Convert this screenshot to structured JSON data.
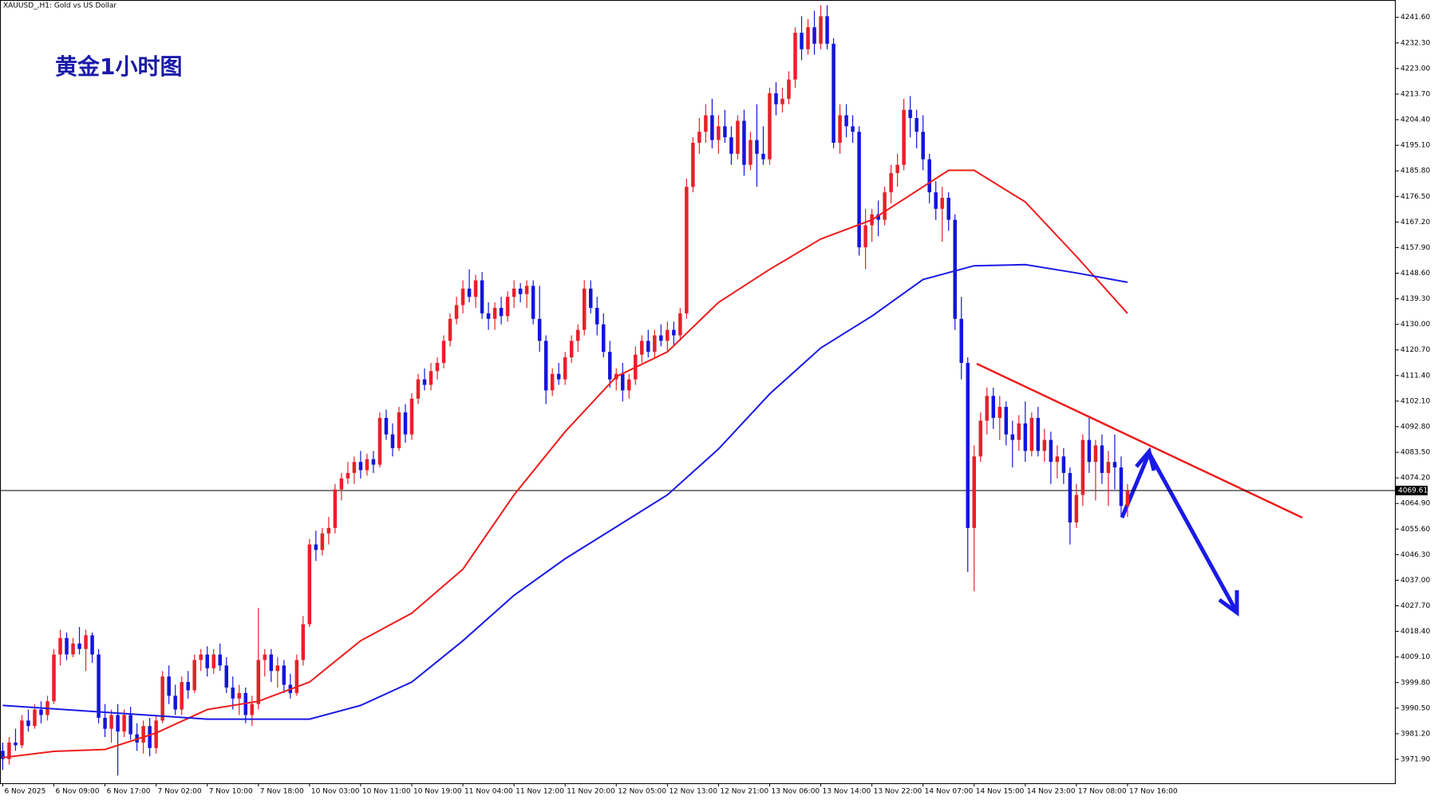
{
  "chart_data": {
    "type": "candlestick",
    "title": "XAUUSD_,H1:  Gold vs US Dollar",
    "annotation": "黄金1小时图",
    "up_color": "#e8202a",
    "down_color": "#1414dc",
    "current_price": 4069.61,
    "ylim": [
      3963.2,
      4247.9
    ],
    "yticks": [
      {
        "value": 4241.6,
        "label": "4241.60"
      },
      {
        "value": 4232.3,
        "label": "4232.30"
      },
      {
        "value": 4223,
        "label": "4223.00"
      },
      {
        "value": 4213.7,
        "label": "4213.70"
      },
      {
        "value": 4204.4,
        "label": "4204.40"
      },
      {
        "value": 4195.1,
        "label": "4195.10"
      },
      {
        "value": 4185.8,
        "label": "4185.80"
      },
      {
        "value": 4176.5,
        "label": "4176.50"
      },
      {
        "value": 4167.2,
        "label": "4167.20"
      },
      {
        "value": 4157.9,
        "label": "4157.90"
      },
      {
        "value": 4148.6,
        "label": "4148.60"
      },
      {
        "value": 4139.3,
        "label": "4139.30"
      },
      {
        "value": 4130,
        "label": "4130.00"
      },
      {
        "value": 4120.7,
        "label": "4120.70"
      },
      {
        "value": 4111.4,
        "label": "4111.40"
      },
      {
        "value": 4102.1,
        "label": "4102.10"
      },
      {
        "value": 4092.8,
        "label": "4092.80"
      },
      {
        "value": 4083.5,
        "label": "4083.50"
      },
      {
        "value": 4074.2,
        "label": "4074.20"
      },
      {
        "value": 4064.9,
        "label": "4064.90"
      },
      {
        "value": 4055.6,
        "label": "4055.60"
      },
      {
        "value": 4046.3,
        "label": "4046.30"
      },
      {
        "value": 4037,
        "label": "4037.00"
      },
      {
        "value": 4027.7,
        "label": "4027.70"
      },
      {
        "value": 4018.4,
        "label": "4018.40"
      },
      {
        "value": 4009.1,
        "label": "4009.10"
      },
      {
        "value": 3999.8,
        "label": "3999.80"
      },
      {
        "value": 3990.5,
        "label": "3990.50"
      },
      {
        "value": 3981.2,
        "label": "3981.20"
      },
      {
        "value": 3971.9,
        "label": "3971.90"
      }
    ],
    "xticks": [
      {
        "value": 0,
        "label": "6 Nov 2025"
      },
      {
        "value": 8,
        "label": "6 Nov 09:00"
      },
      {
        "value": 16,
        "label": "6 Nov 17:00"
      },
      {
        "value": 24,
        "label": "7 Nov 02:00"
      },
      {
        "value": 32,
        "label": "7 Nov 10:00"
      },
      {
        "value": 40,
        "label": "7 Nov 18:00"
      },
      {
        "value": 48,
        "label": "10 Nov 03:00"
      },
      {
        "value": 56,
        "label": "10 Nov 11:00"
      },
      {
        "value": 64,
        "label": "10 Nov 19:00"
      },
      {
        "value": 72,
        "label": "11 Nov 04:00"
      },
      {
        "value": 80,
        "label": "11 Nov 12:00"
      },
      {
        "value": 88,
        "label": "11 Nov 20:00"
      },
      {
        "value": 96,
        "label": "12 Nov 05:00"
      },
      {
        "value": 104,
        "label": "12 Nov 13:00"
      },
      {
        "value": 112,
        "label": "12 Nov 21:00"
      },
      {
        "value": 120,
        "label": "13 Nov 06:00"
      },
      {
        "value": 128,
        "label": "13 Nov 14:00"
      },
      {
        "value": 136,
        "label": "13 Nov 22:00"
      },
      {
        "value": 144,
        "label": "14 Nov 07:00"
      },
      {
        "value": 152,
        "label": "14 Nov 15:00"
      },
      {
        "value": 160,
        "label": "14 Nov 23:00"
      },
      {
        "value": 168,
        "label": "17 Nov 08:00"
      },
      {
        "value": 176,
        "label": "17 Nov 16:00"
      }
    ],
    "candles": [
      [
        3975,
        3978,
        3968,
        3972
      ],
      [
        3972,
        3980,
        3970,
        3978
      ],
      [
        3978,
        3983,
        3975,
        3977
      ],
      [
        3977,
        3988,
        3976,
        3986
      ],
      [
        3986,
        3990,
        3982,
        3984
      ],
      [
        3984,
        3992,
        3983,
        3990
      ],
      [
        3990,
        3993,
        3985,
        3988
      ],
      [
        3988,
        3995,
        3986,
        3993
      ],
      [
        3993,
        4012,
        3992,
        4010
      ],
      [
        4010,
        4019,
        4006,
        4016
      ],
      [
        4016,
        4018,
        4008,
        4010
      ],
      [
        4010,
        4016,
        4009,
        4014
      ],
      [
        4014,
        4020,
        4010,
        4012
      ],
      [
        4012,
        4019,
        4004,
        4017
      ],
      [
        4017,
        4018,
        4007,
        4010
      ],
      [
        4010,
        4012,
        3985,
        3987
      ],
      [
        3987,
        3992,
        3980,
        3983
      ],
      [
        3983,
        3990,
        3978,
        3988
      ],
      [
        3988,
        3992,
        3966,
        3982
      ],
      [
        3982,
        3990,
        3980,
        3988
      ],
      [
        3988,
        3991,
        3979,
        3981
      ],
      [
        3981,
        3985,
        3975,
        3978
      ],
      [
        3978,
        3986,
        3974,
        3984
      ],
      [
        3984,
        3987,
        3973,
        3976
      ],
      [
        3976,
        3988,
        3974,
        3986
      ],
      [
        3986,
        4004,
        3985,
        4002
      ],
      [
        4002,
        4006,
        3992,
        3995
      ],
      [
        3995,
        3999,
        3988,
        3990
      ],
      [
        3990,
        4002,
        3988,
        4000
      ],
      [
        4000,
        4004,
        3994,
        3997
      ],
      [
        3997,
        4010,
        3996,
        4008
      ],
      [
        4008,
        4012,
        4004,
        4010
      ],
      [
        4010,
        4013,
        4002,
        4005
      ],
      [
        4005,
        4012,
        4003,
        4010
      ],
      [
        4010,
        4014,
        4004,
        4006
      ],
      [
        4006,
        4009,
        3996,
        3998
      ],
      [
        3998,
        4002,
        3990,
        3994
      ],
      [
        3994,
        3999,
        3988,
        3996
      ],
      [
        3996,
        3998,
        3985,
        3988
      ],
      [
        3988,
        3995,
        3984,
        3992
      ],
      [
        3992,
        4027,
        3990,
        4008
      ],
      [
        4008,
        4012,
        4002,
        4010
      ],
      [
        4010,
        4012,
        4000,
        4004
      ],
      [
        4004,
        4009,
        3998,
        4006
      ],
      [
        4006,
        4008,
        3996,
        3999
      ],
      [
        3999,
        4003,
        3994,
        3996
      ],
      [
        3996,
        4010,
        3995,
        4008
      ],
      [
        4008,
        4024,
        4006,
        4021
      ],
      [
        4021,
        4052,
        4020,
        4050
      ],
      [
        4050,
        4055,
        4044,
        4048
      ],
      [
        4048,
        4056,
        4046,
        4054
      ],
      [
        4054,
        4060,
        4050,
        4056
      ],
      [
        4056,
        4072,
        4054,
        4070
      ],
      [
        4070,
        4076,
        4066,
        4074
      ],
      [
        4074,
        4080,
        4072,
        4076
      ],
      [
        4076,
        4082,
        4072,
        4080
      ],
      [
        4080,
        4084,
        4074,
        4077
      ],
      [
        4077,
        4083,
        4075,
        4081
      ],
      [
        4081,
        4084,
        4076,
        4079
      ],
      [
        4079,
        4098,
        4078,
        4096
      ],
      [
        4096,
        4099,
        4088,
        4090
      ],
      [
        4090,
        4094,
        4082,
        4085
      ],
      [
        4085,
        4100,
        4084,
        4098
      ],
      [
        4098,
        4101,
        4087,
        4090
      ],
      [
        4090,
        4105,
        4088,
        4103
      ],
      [
        4103,
        4112,
        4101,
        4110
      ],
      [
        4110,
        4114,
        4106,
        4108
      ],
      [
        4108,
        4116,
        4106,
        4113
      ],
      [
        4113,
        4118,
        4110,
        4116
      ],
      [
        4116,
        4126,
        4114,
        4124
      ],
      [
        4124,
        4134,
        4122,
        4132
      ],
      [
        4132,
        4140,
        4130,
        4137
      ],
      [
        4137,
        4146,
        4134,
        4143
      ],
      [
        4143,
        4150,
        4138,
        4140
      ],
      [
        4140,
        4148,
        4136,
        4146
      ],
      [
        4146,
        4149,
        4132,
        4134
      ],
      [
        4134,
        4138,
        4128,
        4132
      ],
      [
        4132,
        4138,
        4128,
        4136
      ],
      [
        4136,
        4140,
        4130,
        4133
      ],
      [
        4133,
        4142,
        4131,
        4140
      ],
      [
        4140,
        4146,
        4136,
        4143
      ],
      [
        4143,
        4145,
        4138,
        4141
      ],
      [
        4141,
        4146,
        4136,
        4144
      ],
      [
        4144,
        4146,
        4130,
        4132
      ],
      [
        4132,
        4144,
        4120,
        4124
      ],
      [
        4124,
        4126,
        4101,
        4106
      ],
      [
        4106,
        4114,
        4104,
        4112
      ],
      [
        4112,
        4116,
        4108,
        4110
      ],
      [
        4110,
        4120,
        4108,
        4118
      ],
      [
        4118,
        4126,
        4116,
        4124
      ],
      [
        4124,
        4130,
        4120,
        4128
      ],
      [
        4128,
        4146,
        4126,
        4143
      ],
      [
        4143,
        4146,
        4134,
        4136
      ],
      [
        4136,
        4140,
        4126,
        4130
      ],
      [
        4130,
        4134,
        4118,
        4120
      ],
      [
        4120,
        4124,
        4107,
        4110
      ],
      [
        4110,
        4114,
        4106,
        4112
      ],
      [
        4112,
        4116,
        4102,
        4106
      ],
      [
        4106,
        4112,
        4103,
        4110
      ],
      [
        4110,
        4122,
        4108,
        4119
      ],
      [
        4119,
        4126,
        4116,
        4124
      ],
      [
        4124,
        4128,
        4118,
        4120
      ],
      [
        4120,
        4128,
        4118,
        4126
      ],
      [
        4126,
        4130,
        4122,
        4124
      ],
      [
        4124,
        4131,
        4120,
        4128
      ],
      [
        4128,
        4131,
        4122,
        4126
      ],
      [
        4126,
        4136,
        4124,
        4134
      ],
      [
        4134,
        4183,
        4132,
        4180
      ],
      [
        4180,
        4198,
        4178,
        4196
      ],
      [
        4196,
        4205,
        4192,
        4200
      ],
      [
        4200,
        4210,
        4196,
        4206
      ],
      [
        4206,
        4212,
        4194,
        4197
      ],
      [
        4197,
        4206,
        4192,
        4202
      ],
      [
        4202,
        4208,
        4196,
        4198
      ],
      [
        4198,
        4202,
        4188,
        4192
      ],
      [
        4192,
        4206,
        4190,
        4204
      ],
      [
        4204,
        4208,
        4184,
        4188
      ],
      [
        4188,
        4200,
        4186,
        4197
      ],
      [
        4197,
        4210,
        4180,
        4192
      ],
      [
        4192,
        4202,
        4188,
        4190
      ],
      [
        4190,
        4216,
        4188,
        4214
      ],
      [
        4214,
        4218,
        4206,
        4210
      ],
      [
        4210,
        4216,
        4207,
        4212
      ],
      [
        4212,
        4222,
        4210,
        4219
      ],
      [
        4219,
        4238,
        4216,
        4236
      ],
      [
        4236,
        4242,
        4226,
        4230
      ],
      [
        4230,
        4241,
        4228,
        4238
      ],
      [
        4238,
        4244,
        4228,
        4232
      ],
      [
        4232,
        4246,
        4230,
        4242
      ],
      [
        4242,
        4246,
        4230,
        4232
      ],
      [
        4232,
        4234,
        4194,
        4196
      ],
      [
        4196,
        4210,
        4192,
        4206
      ],
      [
        4206,
        4210,
        4198,
        4202
      ],
      [
        4202,
        4206,
        4196,
        4200
      ],
      [
        4200,
        4202,
        4155,
        4158
      ],
      [
        4158,
        4172,
        4150,
        4166
      ],
      [
        4166,
        4172,
        4160,
        4170
      ],
      [
        4170,
        4175,
        4162,
        4168
      ],
      [
        4168,
        4180,
        4166,
        4178
      ],
      [
        4178,
        4188,
        4174,
        4185
      ],
      [
        4185,
        4192,
        4180,
        4188
      ],
      [
        4188,
        4212,
        4186,
        4208
      ],
      [
        4208,
        4213,
        4198,
        4205
      ],
      [
        4205,
        4208,
        4194,
        4200
      ],
      [
        4200,
        4206,
        4186,
        4190
      ],
      [
        4190,
        4192,
        4174,
        4178
      ],
      [
        4178,
        4182,
        4168,
        4172
      ],
      [
        4172,
        4180,
        4160,
        4176
      ],
      [
        4176,
        4178,
        4164,
        4168
      ],
      [
        4168,
        4170,
        4128,
        4132
      ],
      [
        4132,
        4140,
        4110,
        4116
      ],
      [
        4116,
        4118,
        4040,
        4056
      ],
      [
        4056,
        4086,
        4033,
        4082
      ],
      [
        4082,
        4098,
        4080,
        4095
      ],
      [
        4095,
        4107,
        4090,
        4104
      ],
      [
        4104,
        4107,
        4092,
        4096
      ],
      [
        4096,
        4104,
        4088,
        4100
      ],
      [
        4100,
        4102,
        4086,
        4090
      ],
      [
        4090,
        4095,
        4078,
        4088
      ],
      [
        4088,
        4097,
        4084,
        4094
      ],
      [
        4094,
        4102,
        4080,
        4084
      ],
      [
        4084,
        4098,
        4082,
        4096
      ],
      [
        4096,
        4100,
        4082,
        4084
      ],
      [
        4084,
        4092,
        4080,
        4088
      ],
      [
        4088,
        4091,
        4072,
        4080
      ],
      [
        4080,
        4086,
        4074,
        4082
      ],
      [
        4082,
        4085,
        4072,
        4076
      ],
      [
        4076,
        4078,
        4050,
        4058
      ],
      [
        4058,
        4072,
        4056,
        4068
      ],
      [
        4068,
        4090,
        4064,
        4088
      ],
      [
        4088,
        4096,
        4076,
        4080
      ],
      [
        4080,
        4088,
        4066,
        4086
      ],
      [
        4086,
        4090,
        4072,
        4076
      ],
      [
        4076,
        4084,
        4064,
        4080
      ],
      [
        4080,
        4090,
        4070,
        4078
      ],
      [
        4078,
        4082,
        4060,
        4064
      ],
      [
        4064,
        4072,
        4060,
        4069.61
      ]
    ],
    "series": [
      {
        "color": "#ee1c1c",
        "x": [
          0,
          8,
          16,
          24,
          32,
          40,
          48,
          56,
          64,
          72,
          80,
          88,
          96,
          104,
          112,
          120,
          128,
          136,
          144,
          148,
          152,
          160,
          168,
          176
        ],
        "values": [
          3972.5,
          3974.8,
          3975.5,
          3981.5,
          3990,
          3993,
          4000,
          4015,
          4025,
          4041,
          4068,
          4091,
          4111,
          4120,
          4138,
          4150,
          4161,
          4168,
          4180,
          4186,
          4186,
          4174.5,
          4154.7,
          4134
        ]
      },
      {
        "color": "#1a1ae6",
        "x": [
          0,
          16,
          32,
          48,
          56,
          64,
          72,
          80,
          88,
          96,
          104,
          112,
          120,
          128,
          136,
          144,
          152,
          160,
          168,
          176
        ],
        "values": [
          3991.5,
          3989,
          3986.5,
          3986.5,
          3991.5,
          4000,
          4015,
          4031.5,
          4044.8,
          4056.4,
          4068,
          4084.7,
          4104.7,
          4121.4,
          4133,
          4146.3,
          4151.3,
          4151.7,
          4148.7,
          4145.3
        ]
      }
    ]
  }
}
